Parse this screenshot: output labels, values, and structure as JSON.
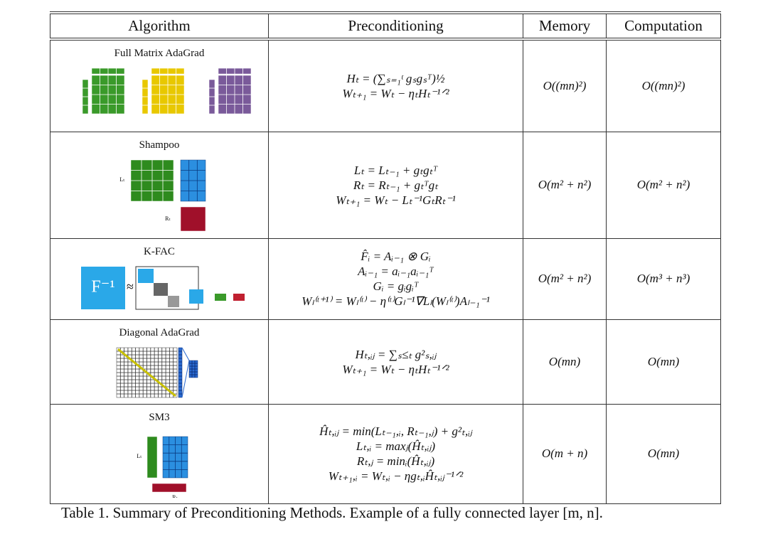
{
  "header": [
    "Algorithm",
    "Preconditioning",
    "Memory",
    "Computation"
  ],
  "rows": [
    {
      "algorithm": "Full Matrix AdaGrad",
      "diagram_labels": [],
      "preconditioning": [
        "Hₜ = (∑ₛ₌₁ᵗ gₛgₛᵀ)½",
        "Wₜ₊₁ = Wₜ − ηₜHₜ⁻¹ᐟ²"
      ],
      "memory": "O((mn)²)",
      "computation": "O((mn)²)"
    },
    {
      "algorithm": "Shampoo",
      "diagram_labels": [
        "Lₜ",
        "Rₜ"
      ],
      "preconditioning": [
        "Lₜ = Lₜ₋₁ + gₜgₜᵀ",
        "Rₜ = Rₜ₋₁ + gₜᵀgₜ",
        "Wₜ₊₁ = Wₜ − Lₜ⁻¹GₜRₜ⁻¹"
      ],
      "memory": "O(m² + n²)",
      "computation": "O(m² + n²)"
    },
    {
      "algorithm": "K-FAC",
      "diagram_labels": [
        "F⁻¹",
        "≈"
      ],
      "preconditioning": [
        "F̂ᵢ = Aᵢ₋₁ ⊗ Gᵢ",
        "Aᵢ₋₁ = aᵢ₋₁aᵢ₋₁ᵀ",
        "Gᵢ = gᵢgᵢᵀ",
        "Wₗ⁽ᵗ⁺¹⁾ = Wₗ⁽ᵗ⁾ − η⁽ᵗ⁾Gₗ⁻¹∇Lₗ(Wₗ⁽ᵗ⁾)Aₗ₋₁⁻¹"
      ],
      "memory": "O(m² + n²)",
      "computation": "O(m³ + n³)"
    },
    {
      "algorithm": "Diagonal AdaGrad",
      "diagram_labels": [],
      "preconditioning": [
        "Hₜ,ᵢⱼ = ∑ₛ≤ₜ g²ₛ,ᵢⱼ",
        "Wₜ₊₁ = Wₜ − ηₜHₜ⁻¹ᐟ²"
      ],
      "memory": "O(mn)",
      "computation": "O(mn)"
    },
    {
      "algorithm": "SM3",
      "diagram_labels": [
        "Lₜ",
        "Rₜ"
      ],
      "preconditioning": [
        "Ĥₜ,ᵢⱼ = min(Lₜ₋₁,ᵢ, Rₜ₋₁,ⱼ) + g²ₜ,ᵢⱼ",
        "Lₜ,ᵢ = maxⱼ(Ĥₜ,ᵢⱼ)",
        "Rₜ,ⱼ = minᵢ(Ĥₜ,ᵢⱼ)",
        "Wₜ₊₁,ᵢ = Wₜ,ᵢ − ηgₜ,ᵢĤₜ,ᵢⱼ⁻¹ᐟ²"
      ],
      "memory": "O(m + n)",
      "computation": "O(mn)"
    }
  ],
  "caption": "Table 1.  Summary of Preconditioning Methods. Example of a fully connected layer [m, n]."
}
